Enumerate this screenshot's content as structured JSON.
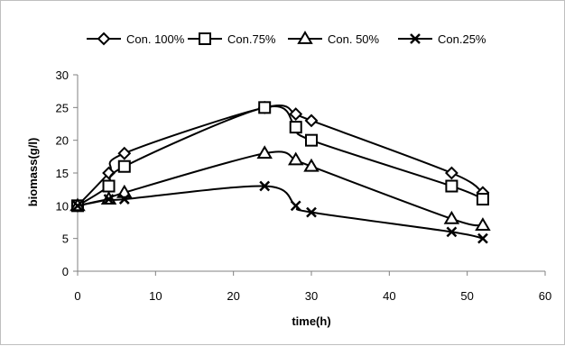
{
  "chart_data": {
    "type": "line",
    "title": "",
    "xlabel": "time(h)",
    "ylabel": "biomass(g/l)",
    "xlim": [
      0,
      60
    ],
    "ylim": [
      0,
      30
    ],
    "xticks": [
      0,
      10,
      20,
      30,
      40,
      50,
      60
    ],
    "yticks": [
      0,
      5,
      10,
      15,
      20,
      25,
      30
    ],
    "grid": false,
    "legend_position": "top",
    "series": [
      {
        "name": "Con. 100%",
        "marker": "diamond",
        "x": [
          0,
          4,
          6,
          24,
          28,
          30,
          48,
          52
        ],
        "y": [
          10,
          15,
          18,
          25,
          24,
          23,
          15,
          12
        ]
      },
      {
        "name": "Con.75%",
        "marker": "square",
        "x": [
          0,
          4,
          6,
          24,
          28,
          30,
          48,
          52
        ],
        "y": [
          10,
          13,
          16,
          25,
          22,
          20,
          13,
          11
        ]
      },
      {
        "name": "Con. 50%",
        "marker": "triangle",
        "x": [
          0,
          4,
          6,
          24,
          28,
          30,
          48,
          52
        ],
        "y": [
          10,
          11,
          12,
          18,
          17,
          16,
          8,
          7
        ]
      },
      {
        "name": "Con.25%",
        "marker": "x",
        "x": [
          0,
          4,
          6,
          24,
          28,
          30,
          48,
          52
        ],
        "y": [
          10,
          11,
          11,
          13,
          10,
          9,
          6,
          5
        ]
      }
    ]
  }
}
